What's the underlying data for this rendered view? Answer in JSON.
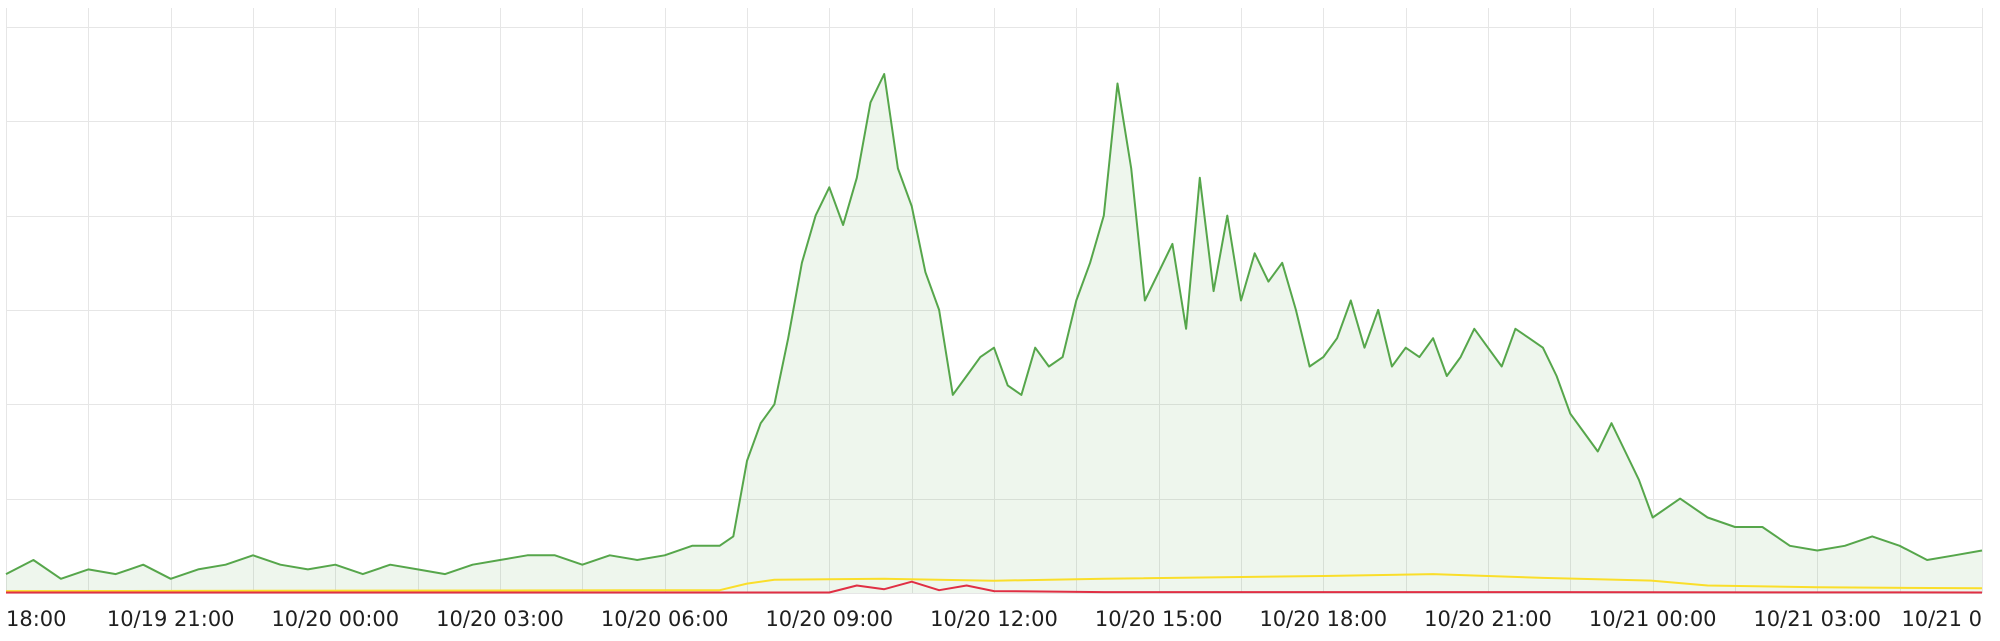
{
  "chart_data": {
    "type": "area",
    "title": "",
    "xlabel": "",
    "ylabel": "",
    "x_tick_labels": [
      "18:00",
      "10/19 21:00",
      "10/20 00:00",
      "10/20 03:00",
      "10/20 06:00",
      "10/20 09:00",
      "10/20 12:00",
      "10/20 15:00",
      "10/20 18:00",
      "10/20 21:00",
      "10/21 00:00",
      "10/21 03:00",
      "10/21 0"
    ],
    "x_range_hours": [
      0,
      36
    ],
    "x_label_hours": [
      0,
      3,
      6,
      9,
      12,
      15,
      18,
      21,
      24,
      27,
      30,
      33,
      36
    ],
    "ylim": [
      0,
      62
    ],
    "y_gridlines": [
      0,
      10,
      20,
      30,
      40,
      50,
      60
    ],
    "grid": true,
    "legend": "none",
    "series": [
      {
        "color": "#56a64b",
        "fill": true,
        "x": [
          0,
          0.5,
          1,
          1.5,
          2,
          2.5,
          3,
          3.5,
          4,
          4.5,
          5,
          5.5,
          6,
          6.5,
          7,
          7.5,
          8,
          8.5,
          9,
          9.5,
          10,
          10.5,
          11,
          11.5,
          12,
          12.5,
          13,
          13.25,
          13.5,
          13.75,
          14,
          14.25,
          14.5,
          14.75,
          15,
          15.25,
          15.5,
          15.75,
          16,
          16.25,
          16.5,
          16.75,
          17,
          17.25,
          17.5,
          17.75,
          18,
          18.25,
          18.5,
          18.75,
          19,
          19.25,
          19.5,
          19.75,
          20,
          20.25,
          20.5,
          20.75,
          21,
          21.25,
          21.5,
          21.75,
          22,
          22.25,
          22.5,
          22.75,
          23,
          23.25,
          23.5,
          23.75,
          24,
          24.25,
          24.5,
          24.75,
          25,
          25.25,
          25.5,
          25.75,
          26,
          26.25,
          26.5,
          26.75,
          27,
          27.25,
          27.5,
          27.75,
          28,
          28.25,
          28.5,
          28.75,
          29,
          29.25,
          29.5,
          29.75,
          30,
          30.5,
          31,
          31.5,
          32,
          32.5,
          33,
          33.5,
          34,
          34.5,
          35,
          35.5,
          36
        ],
        "values": [
          2,
          3.5,
          1.5,
          2.5,
          2,
          3,
          1.5,
          2.5,
          3,
          4,
          3,
          2.5,
          3,
          2,
          3,
          2.5,
          2,
          3,
          3.5,
          4,
          4,
          3,
          4,
          3.5,
          4,
          5,
          5,
          6,
          14,
          18,
          20,
          27,
          35,
          40,
          43,
          39,
          44,
          52,
          55,
          45,
          41,
          34,
          30,
          21,
          23,
          25,
          26,
          22,
          21,
          26,
          24,
          25,
          31,
          35,
          40,
          54,
          45,
          31,
          34,
          37,
          28,
          44,
          32,
          40,
          31,
          36,
          33,
          35,
          30,
          24,
          25,
          27,
          31,
          26,
          30,
          24,
          26,
          25,
          27,
          23,
          25,
          28,
          26,
          24,
          28,
          27,
          26,
          23,
          19,
          17,
          15,
          18,
          15,
          12,
          8,
          10,
          8,
          7,
          7,
          5,
          4.5,
          5,
          6,
          5,
          3.5,
          4,
          4.5
        ]
      },
      {
        "color": "#fade2a",
        "fill": false,
        "x": [
          0,
          13,
          13.5,
          14,
          16,
          18,
          20,
          24,
          26,
          27,
          28,
          30,
          31,
          33,
          36
        ],
        "values": [
          0.2,
          0.3,
          1,
          1.4,
          1.5,
          1.3,
          1.5,
          1.8,
          2,
          1.8,
          1.6,
          1.3,
          0.8,
          0.6,
          0.5
        ]
      },
      {
        "color": "#e02f44",
        "fill": false,
        "x": [
          0,
          15,
          15.5,
          16,
          16.5,
          17,
          17.5,
          18,
          20,
          24,
          28,
          36
        ],
        "values": [
          0.05,
          0.05,
          0.8,
          0.4,
          1.2,
          0.3,
          0.8,
          0.2,
          0.1,
          0.1,
          0.1,
          0.05
        ]
      }
    ]
  }
}
